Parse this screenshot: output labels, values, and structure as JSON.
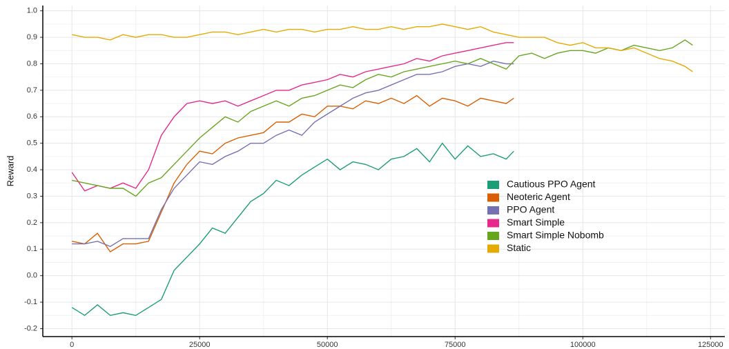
{
  "chart_data": {
    "type": "line",
    "ylabel": "Reward",
    "xlim": [
      -5700,
      127800
    ],
    "xticks": [
      0,
      25000,
      50000,
      75000,
      100000,
      125000
    ],
    "ylim": [
      -0.23,
      1.02
    ],
    "yticks": [
      -0.2,
      -0.1,
      {
        "value": 0,
        "label": "0.0"
      },
      0.1,
      0.2,
      0.3,
      0.4,
      0.5,
      0.6,
      0.7,
      0.8,
      0.9,
      {
        "value": 1,
        "label": "1.0"
      }
    ],
    "grid": true,
    "legend": "center-right",
    "series": [
      {
        "name": "Cautious PPO Agent",
        "color": "#1b9e77",
        "x": [
          0,
          2500,
          5000,
          7500,
          10000,
          12500,
          15000,
          17500,
          20000,
          22500,
          25000,
          27500,
          30000,
          32500,
          35000,
          37500,
          40000,
          42500,
          45000,
          47500,
          50000,
          52500,
          55000,
          57500,
          60000,
          62500,
          65000,
          67500,
          70000,
          72500,
          75000,
          77500,
          80000,
          82500,
          85000,
          86500
        ],
        "values": [
          -0.12,
          -0.15,
          -0.11,
          -0.15,
          -0.14,
          -0.15,
          -0.12,
          -0.09,
          0.02,
          0.07,
          0.12,
          0.18,
          0.16,
          0.22,
          0.28,
          0.31,
          0.36,
          0.34,
          0.38,
          0.41,
          0.44,
          0.4,
          0.43,
          0.42,
          0.4,
          0.44,
          0.45,
          0.48,
          0.43,
          0.5,
          0.44,
          0.49,
          0.45,
          0.46,
          0.44,
          0.47
        ]
      },
      {
        "name": "Neoteric Agent",
        "color": "#d95f02",
        "x": [
          0,
          2500,
          5000,
          7500,
          10000,
          12500,
          15000,
          17500,
          20000,
          22500,
          25000,
          27500,
          30000,
          32500,
          35000,
          37500,
          40000,
          42500,
          45000,
          47500,
          50000,
          52500,
          55000,
          57500,
          60000,
          62500,
          65000,
          67500,
          70000,
          72500,
          75000,
          77500,
          80000,
          82500,
          85000,
          86500
        ],
        "values": [
          0.13,
          0.12,
          0.16,
          0.09,
          0.12,
          0.12,
          0.13,
          0.24,
          0.35,
          0.42,
          0.47,
          0.46,
          0.5,
          0.52,
          0.53,
          0.54,
          0.58,
          0.58,
          0.61,
          0.6,
          0.64,
          0.64,
          0.63,
          0.66,
          0.65,
          0.67,
          0.65,
          0.68,
          0.64,
          0.67,
          0.66,
          0.64,
          0.67,
          0.66,
          0.65,
          0.67
        ]
      },
      {
        "name": "PPO Agent",
        "color": "#7570b3",
        "x": [
          0,
          2500,
          5000,
          7500,
          10000,
          12500,
          15000,
          17500,
          20000,
          22500,
          25000,
          27500,
          30000,
          32500,
          35000,
          37500,
          40000,
          42500,
          45000,
          47500,
          50000,
          52500,
          55000,
          57500,
          60000,
          62500,
          65000,
          67500,
          70000,
          72500,
          75000,
          77500,
          80000,
          82500,
          85000,
          86500
        ],
        "values": [
          0.12,
          0.12,
          0.13,
          0.11,
          0.14,
          0.14,
          0.14,
          0.25,
          0.33,
          0.38,
          0.43,
          0.42,
          0.45,
          0.47,
          0.5,
          0.5,
          0.53,
          0.55,
          0.53,
          0.58,
          0.61,
          0.64,
          0.67,
          0.69,
          0.7,
          0.72,
          0.74,
          0.76,
          0.76,
          0.77,
          0.79,
          0.8,
          0.79,
          0.81,
          0.8,
          0.8
        ]
      },
      {
        "name": "Smart Simple",
        "color": "#e7298a",
        "x": [
          0,
          2500,
          5000,
          7500,
          10000,
          12500,
          15000,
          17500,
          20000,
          22500,
          25000,
          27500,
          30000,
          32500,
          35000,
          37500,
          40000,
          42500,
          45000,
          47500,
          50000,
          52500,
          55000,
          57500,
          60000,
          62500,
          65000,
          67500,
          70000,
          72500,
          75000,
          77500,
          80000,
          82500,
          85000,
          86500
        ],
        "values": [
          0.39,
          0.32,
          0.34,
          0.33,
          0.35,
          0.33,
          0.4,
          0.53,
          0.6,
          0.65,
          0.66,
          0.65,
          0.66,
          0.64,
          0.66,
          0.68,
          0.7,
          0.7,
          0.72,
          0.73,
          0.74,
          0.76,
          0.75,
          0.77,
          0.78,
          0.79,
          0.8,
          0.82,
          0.81,
          0.83,
          0.84,
          0.85,
          0.86,
          0.87,
          0.88,
          0.88
        ]
      },
      {
        "name": "Smart Simple Nobomb",
        "color": "#66a61e",
        "x": [
          0,
          2500,
          5000,
          7500,
          10000,
          12500,
          15000,
          17500,
          20000,
          22500,
          25000,
          27500,
          30000,
          32500,
          35000,
          37500,
          40000,
          42500,
          45000,
          47500,
          50000,
          52500,
          55000,
          57500,
          60000,
          62500,
          65000,
          67500,
          70000,
          72500,
          75000,
          77500,
          80000,
          82500,
          85000,
          87500,
          90000,
          92500,
          95000,
          97500,
          100000,
          102500,
          105000,
          107500,
          110000,
          112500,
          115000,
          117500,
          120000,
          121500
        ],
        "values": [
          0.36,
          0.35,
          0.34,
          0.33,
          0.33,
          0.3,
          0.35,
          0.37,
          0.42,
          0.47,
          0.52,
          0.56,
          0.6,
          0.58,
          0.62,
          0.64,
          0.66,
          0.64,
          0.67,
          0.68,
          0.7,
          0.72,
          0.71,
          0.74,
          0.76,
          0.75,
          0.77,
          0.78,
          0.79,
          0.8,
          0.81,
          0.8,
          0.82,
          0.8,
          0.78,
          0.83,
          0.84,
          0.82,
          0.84,
          0.85,
          0.85,
          0.84,
          0.86,
          0.85,
          0.87,
          0.86,
          0.85,
          0.86,
          0.89,
          0.87
        ]
      },
      {
        "name": "Static",
        "color": "#e6ab02",
        "x": [
          0,
          2500,
          5000,
          7500,
          10000,
          12500,
          15000,
          17500,
          20000,
          22500,
          25000,
          27500,
          30000,
          32500,
          35000,
          37500,
          40000,
          42500,
          45000,
          47500,
          50000,
          52500,
          55000,
          57500,
          60000,
          62500,
          65000,
          67500,
          70000,
          72500,
          75000,
          77500,
          80000,
          82500,
          85000,
          87500,
          90000,
          92500,
          95000,
          97500,
          100000,
          102500,
          105000,
          107500,
          110000,
          112500,
          115000,
          117500,
          120000,
          121500
        ],
        "values": [
          0.91,
          0.9,
          0.9,
          0.89,
          0.91,
          0.9,
          0.91,
          0.91,
          0.9,
          0.9,
          0.91,
          0.92,
          0.92,
          0.91,
          0.92,
          0.93,
          0.92,
          0.93,
          0.93,
          0.92,
          0.93,
          0.93,
          0.94,
          0.93,
          0.93,
          0.94,
          0.93,
          0.94,
          0.94,
          0.95,
          0.94,
          0.93,
          0.94,
          0.92,
          0.91,
          0.9,
          0.9,
          0.9,
          0.88,
          0.87,
          0.88,
          0.86,
          0.86,
          0.85,
          0.86,
          0.84,
          0.82,
          0.81,
          0.79,
          0.77
        ]
      }
    ]
  }
}
